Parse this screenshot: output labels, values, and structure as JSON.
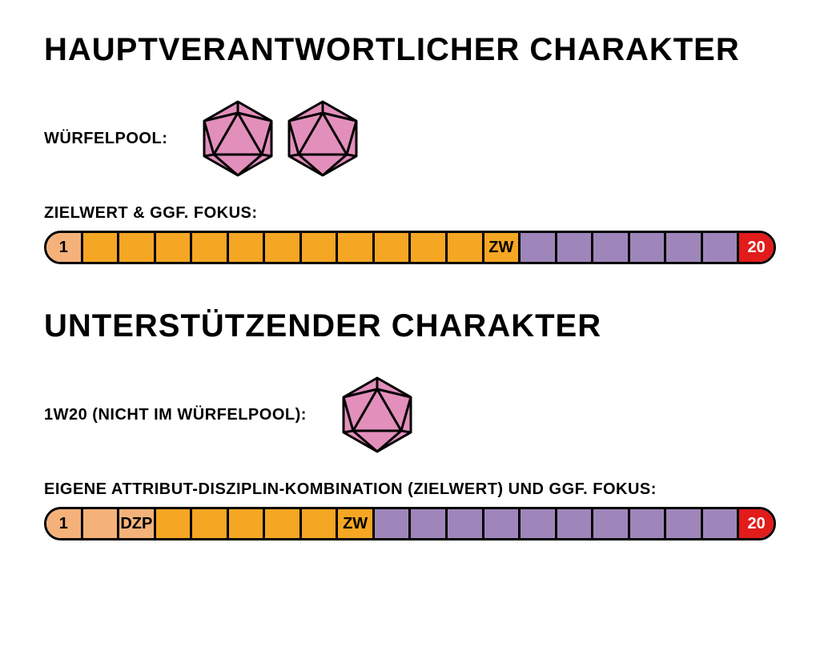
{
  "colors": {
    "peach": "#f4b27a",
    "orange": "#f5a623",
    "purple": "#9f86ba",
    "red": "#e21b1b",
    "die_fill": "#e38fbc",
    "die_stroke": "#000000",
    "text": "#000000",
    "bg": "#ffffff"
  },
  "typography": {
    "title_fontsize": 40,
    "label_fontsize": 20,
    "cell_fontsize": 20,
    "weight": 900
  },
  "sections": [
    {
      "title": "HAUPTVERANTWORTLICHER CHARAKTER",
      "dice_label": "WÜRFELPOOL:",
      "dice_count": 2,
      "bar_label": "ZIELWERT & GGF. FOKUS:",
      "bar": {
        "total_cells": 20,
        "cells": [
          {
            "text": "1",
            "bg": "peach"
          },
          {
            "text": "",
            "bg": "orange"
          },
          {
            "text": "",
            "bg": "orange"
          },
          {
            "text": "",
            "bg": "orange"
          },
          {
            "text": "",
            "bg": "orange"
          },
          {
            "text": "",
            "bg": "orange"
          },
          {
            "text": "",
            "bg": "orange"
          },
          {
            "text": "",
            "bg": "orange"
          },
          {
            "text": "",
            "bg": "orange"
          },
          {
            "text": "",
            "bg": "orange"
          },
          {
            "text": "",
            "bg": "orange"
          },
          {
            "text": "",
            "bg": "orange"
          },
          {
            "text": "ZW",
            "bg": "orange"
          },
          {
            "text": "",
            "bg": "purple"
          },
          {
            "text": "",
            "bg": "purple"
          },
          {
            "text": "",
            "bg": "purple"
          },
          {
            "text": "",
            "bg": "purple"
          },
          {
            "text": "",
            "bg": "purple"
          },
          {
            "text": "",
            "bg": "purple"
          },
          {
            "text": "20",
            "bg": "red"
          }
        ]
      }
    },
    {
      "title": "UNTERSTÜTZENDER CHARAKTER",
      "dice_label": "1W20 (NICHT IM WÜRFELPOOL):",
      "dice_count": 1,
      "bar_label": "EIGENE ATTRIBUT-DISZIPLIN-KOMBINATION (ZIELWERT) UND GGF. FOKUS:",
      "bar": {
        "total_cells": 20,
        "cells": [
          {
            "text": "1",
            "bg": "peach"
          },
          {
            "text": "",
            "bg": "peach"
          },
          {
            "text": "DZP",
            "bg": "peach"
          },
          {
            "text": "",
            "bg": "orange"
          },
          {
            "text": "",
            "bg": "orange"
          },
          {
            "text": "",
            "bg": "orange"
          },
          {
            "text": "",
            "bg": "orange"
          },
          {
            "text": "",
            "bg": "orange"
          },
          {
            "text": "ZW",
            "bg": "orange"
          },
          {
            "text": "",
            "bg": "purple"
          },
          {
            "text": "",
            "bg": "purple"
          },
          {
            "text": "",
            "bg": "purple"
          },
          {
            "text": "",
            "bg": "purple"
          },
          {
            "text": "",
            "bg": "purple"
          },
          {
            "text": "",
            "bg": "purple"
          },
          {
            "text": "",
            "bg": "purple"
          },
          {
            "text": "",
            "bg": "purple"
          },
          {
            "text": "",
            "bg": "purple"
          },
          {
            "text": "",
            "bg": "purple"
          },
          {
            "text": "20",
            "bg": "red"
          }
        ]
      }
    }
  ]
}
